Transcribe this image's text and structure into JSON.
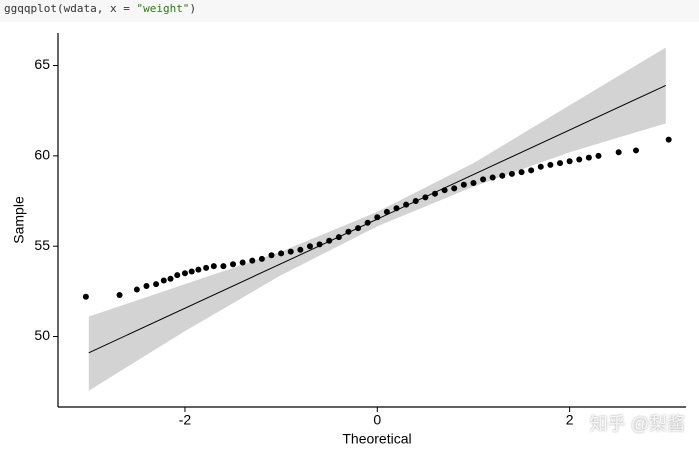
{
  "code": {
    "prefix": "ggqqplot(wdata, x = ",
    "string": "\"weight\"",
    "suffix": ")"
  },
  "watermark": "知乎 @梨酱",
  "chart_data": {
    "type": "qq",
    "xlabel": "Theoretical",
    "ylabel": "Sample",
    "xlim": [
      -3.32,
      3.21
    ],
    "ylim": [
      46.1,
      66.8
    ],
    "xticks": [
      -2,
      0,
      2
    ],
    "yticks": [
      50,
      55,
      60,
      65
    ],
    "point_color": "#000000",
    "line_color": "#000000",
    "band_color": "#d3d3d3",
    "x": [
      -3.03,
      -2.68,
      -2.5,
      -2.4,
      -2.3,
      -2.22,
      -2.15,
      -2.08,
      -2.0,
      -1.93,
      -1.86,
      -1.78,
      -1.7,
      -1.6,
      -1.5,
      -1.4,
      -1.3,
      -1.2,
      -1.1,
      -1.0,
      -0.9,
      -0.8,
      -0.7,
      -0.6,
      -0.5,
      -0.4,
      -0.3,
      -0.2,
      -0.1,
      0,
      0.1,
      0.2,
      0.3,
      0.4,
      0.5,
      0.6,
      0.7,
      0.8,
      0.9,
      1.0,
      1.1,
      1.2,
      1.3,
      1.4,
      1.5,
      1.6,
      1.7,
      1.8,
      1.9,
      2.0,
      2.1,
      2.2,
      2.3,
      2.51,
      2.69,
      3.03
    ],
    "y": [
      52.2,
      52.3,
      52.6,
      52.8,
      52.9,
      53.1,
      53.2,
      53.4,
      53.5,
      53.6,
      53.7,
      53.8,
      53.9,
      53.9,
      54.0,
      54.1,
      54.2,
      54.3,
      54.5,
      54.6,
      54.7,
      54.8,
      55.0,
      55.1,
      55.3,
      55.5,
      55.8,
      56.0,
      56.3,
      56.6,
      56.9,
      57.1,
      57.3,
      57.5,
      57.7,
      57.9,
      58.1,
      58.2,
      58.4,
      58.5,
      58.7,
      58.8,
      58.9,
      59.0,
      59.1,
      59.2,
      59.4,
      59.5,
      59.6,
      59.7,
      59.8,
      59.9,
      60.0,
      60.2,
      60.3,
      60.9
    ],
    "reference_line": {
      "x": [
        -3,
        3
      ],
      "y": [
        49.1,
        63.9
      ]
    },
    "band": {
      "x": [
        -3,
        -2,
        -1,
        0,
        1,
        2,
        3
      ],
      "lower": [
        47.0,
        50.3,
        53.4,
        56.1,
        58.3,
        60.2,
        61.8
      ],
      "upper": [
        51.1,
        52.9,
        54.7,
        56.9,
        59.6,
        62.8,
        66.0
      ]
    }
  }
}
